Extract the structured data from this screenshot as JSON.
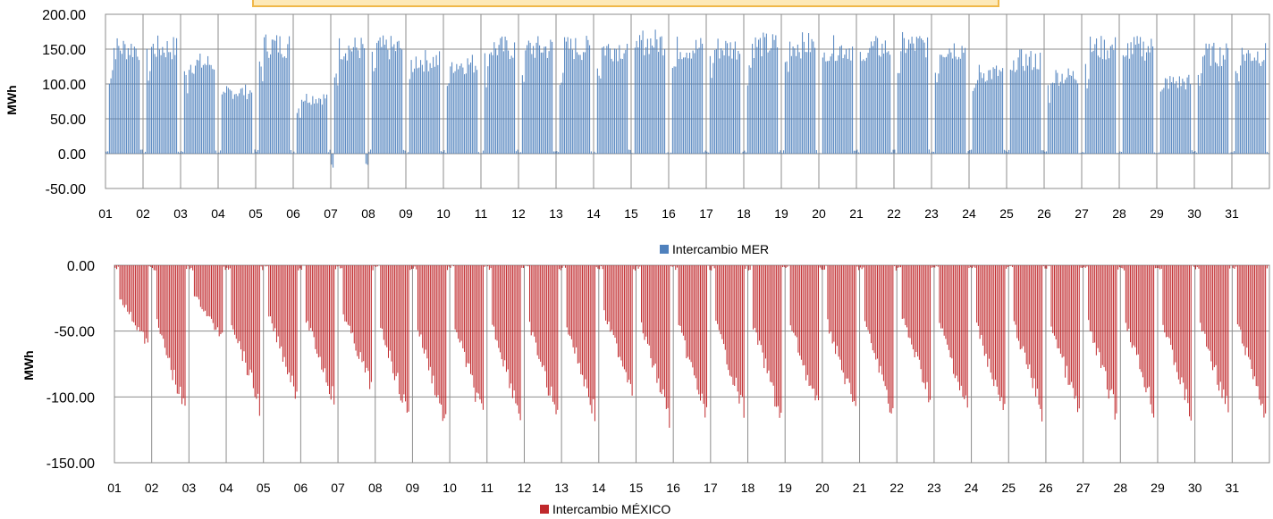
{
  "chart_data": [
    {
      "type": "bar",
      "ylabel": "MWh",
      "ylim": [
        -50,
        200
      ],
      "yticks": [
        "200.00",
        "150.00",
        "100.00",
        "50.00",
        "0.00",
        "-50.00"
      ],
      "ytick_values": [
        200,
        150,
        100,
        50,
        0,
        -50
      ],
      "categories": [
        "01",
        "02",
        "03",
        "04",
        "05",
        "06",
        "07",
        "08",
        "09",
        "10",
        "11",
        "12",
        "13",
        "14",
        "15",
        "16",
        "17",
        "18",
        "19",
        "20",
        "21",
        "22",
        "23",
        "24",
        "25",
        "26",
        "27",
        "28",
        "29",
        "30",
        "31"
      ],
      "hours_per_day": 24,
      "series": [
        {
          "name": "Intercambio MER",
          "color": "#4f81bd",
          "day_profiles": [
            [
              0,
              170
            ],
            [
              0,
              170
            ],
            [
              0,
              145
            ],
            [
              0,
              100
            ],
            [
              0,
              175
            ],
            [
              0,
              90
            ],
            [
              -20,
              170
            ],
            [
              0,
              170
            ],
            [
              0,
              150
            ],
            [
              0,
              145
            ],
            [
              0,
              170
            ],
            [
              0,
              170
            ],
            [
              0,
              170
            ],
            [
              0,
              170
            ],
            [
              0,
              180
            ],
            [
              0,
              170
            ],
            [
              0,
              170
            ],
            [
              0,
              175
            ],
            [
              0,
              175
            ],
            [
              0,
              170
            ],
            [
              0,
              170
            ],
            [
              0,
              175
            ],
            [
              0,
              170
            ],
            [
              0,
              130
            ],
            [
              0,
              150
            ],
            [
              0,
              125
            ],
            [
              0,
              170
            ],
            [
              0,
              170
            ],
            [
              0,
              115
            ],
            [
              0,
              160
            ],
            [
              0,
              160
            ]
          ]
        }
      ]
    },
    {
      "type": "bar",
      "ylabel": "MWh",
      "ylim": [
        -150,
        0
      ],
      "yticks": [
        "0.00",
        "-50.00",
        "-100.00",
        "-150.00"
      ],
      "ytick_values": [
        0,
        -50,
        -100,
        -150
      ],
      "categories": [
        "01",
        "02",
        "03",
        "04",
        "05",
        "06",
        "07",
        "08",
        "09",
        "10",
        "11",
        "12",
        "13",
        "14",
        "15",
        "16",
        "17",
        "18",
        "19",
        "20",
        "21",
        "22",
        "23",
        "24",
        "25",
        "26",
        "27",
        "28",
        "29",
        "30",
        "31"
      ],
      "hours_per_day": 24,
      "series": [
        {
          "name": "Intercambio MÉXICO",
          "color": "#c0282b",
          "day_profiles": [
            [
              -65
            ],
            [
              -120
            ],
            [
              -60
            ],
            [
              -115
            ],
            [
              -105
            ],
            [
              -110
            ],
            [
              -100
            ],
            [
              -125
            ],
            [
              -130
            ],
            [
              -125
            ],
            [
              -122
            ],
            [
              -125
            ],
            [
              -122
            ],
            [
              -100
            ],
            [
              -125
            ],
            [
              -125
            ],
            [
              -120
            ],
            [
              -125
            ],
            [
              -120
            ],
            [
              -120
            ],
            [
              -120
            ],
            [
              -108
            ],
            [
              -118
            ],
            [
              -122
            ],
            [
              -120
            ],
            [
              -122
            ],
            [
              -122
            ],
            [
              -118
            ],
            [
              -122
            ],
            [
              -120
            ],
            [
              -122
            ]
          ]
        }
      ]
    }
  ]
}
